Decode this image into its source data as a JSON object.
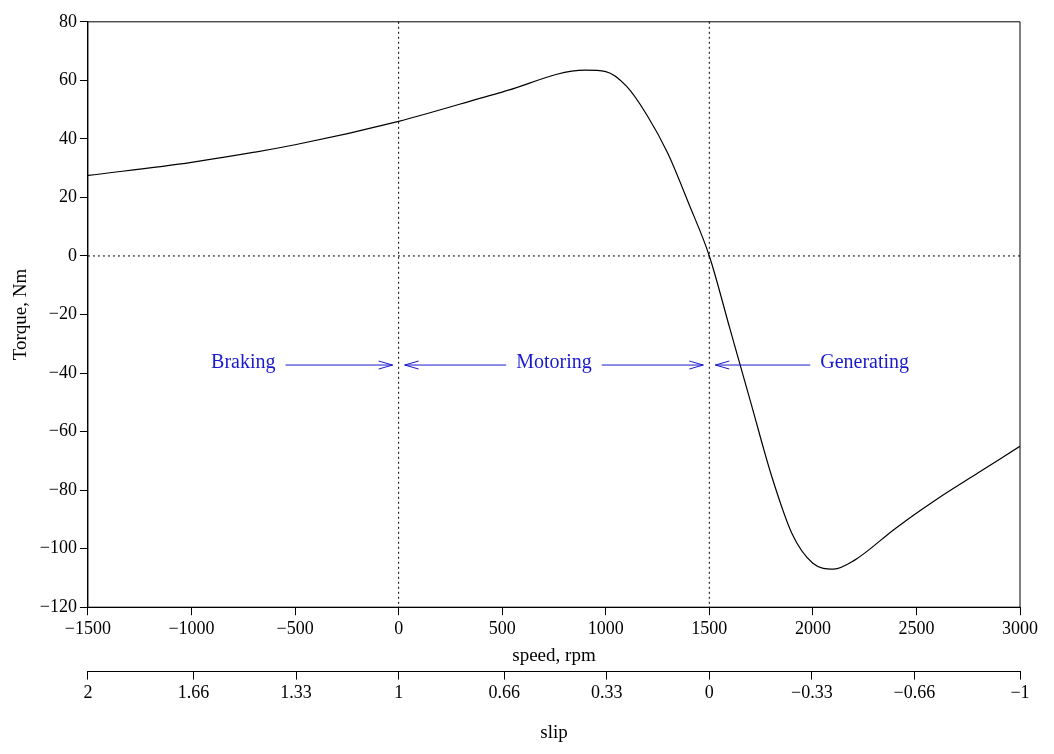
{
  "chart_data": {
    "type": "line",
    "xlabel": "speed, rpm",
    "ylabel": "Torque, Nm",
    "x2label": "slip",
    "x": [
      -1500,
      -1000,
      -500,
      0,
      500,
      900,
      1000,
      1100,
      1200,
      1300,
      1400,
      1500,
      1600,
      1700,
      1800,
      1900,
      2000,
      2100,
      2200,
      2400,
      2600,
      2800,
      3000
    ],
    "series": [
      {
        "color": "#000000",
        "values": [
          27.5,
          32,
          38,
          46,
          56,
          63.5,
          63,
          58,
          48,
          35,
          18,
          0,
          -25,
          -50,
          -75,
          -95,
          -105,
          -107,
          -104,
          -93,
          -83,
          -74,
          -65
        ]
      }
    ],
    "xlim": [
      -1500,
      3000
    ],
    "xticks": [
      {
        "value": -1500,
        "label": "−1500"
      },
      {
        "value": -1000,
        "label": "−1000"
      },
      {
        "value": -500,
        "label": "−500"
      },
      0,
      500,
      1000,
      1500,
      2000,
      2500,
      3000
    ],
    "ylim": [
      -120,
      80
    ],
    "yticks": [
      {
        "value": -120,
        "label": "−120"
      },
      {
        "value": -100,
        "label": "−100"
      },
      {
        "value": -80,
        "label": "−80"
      },
      {
        "value": -60,
        "label": "−60"
      },
      {
        "value": -40,
        "label": "−40"
      },
      {
        "value": -20,
        "label": "−20"
      },
      0,
      20,
      40,
      60,
      80
    ],
    "x2lim": [
      2,
      -1
    ],
    "x2ticks": [
      2,
      1.66,
      1.33,
      1,
      0.66,
      0.33,
      0,
      {
        "value": -0.33,
        "label": "−0.33"
      },
      {
        "value": -0.66,
        "label": "−0.66"
      },
      {
        "value": -1,
        "label": "−1"
      }
    ],
    "ref_lines": [
      {
        "axis": "x",
        "value": 0,
        "line_style": "dotted",
        "color": "#000000"
      },
      {
        "axis": "x",
        "value": 1500,
        "line_style": "dotted",
        "color": "#000000"
      },
      {
        "axis": "y",
        "value": 0,
        "line_style": "dotted",
        "color": "#000000"
      }
    ],
    "annotations": [
      "Braking",
      "Motoring",
      "Generating"
    ],
    "grid": false,
    "legend": false,
    "marker": "none",
    "line_style": "solid"
  }
}
